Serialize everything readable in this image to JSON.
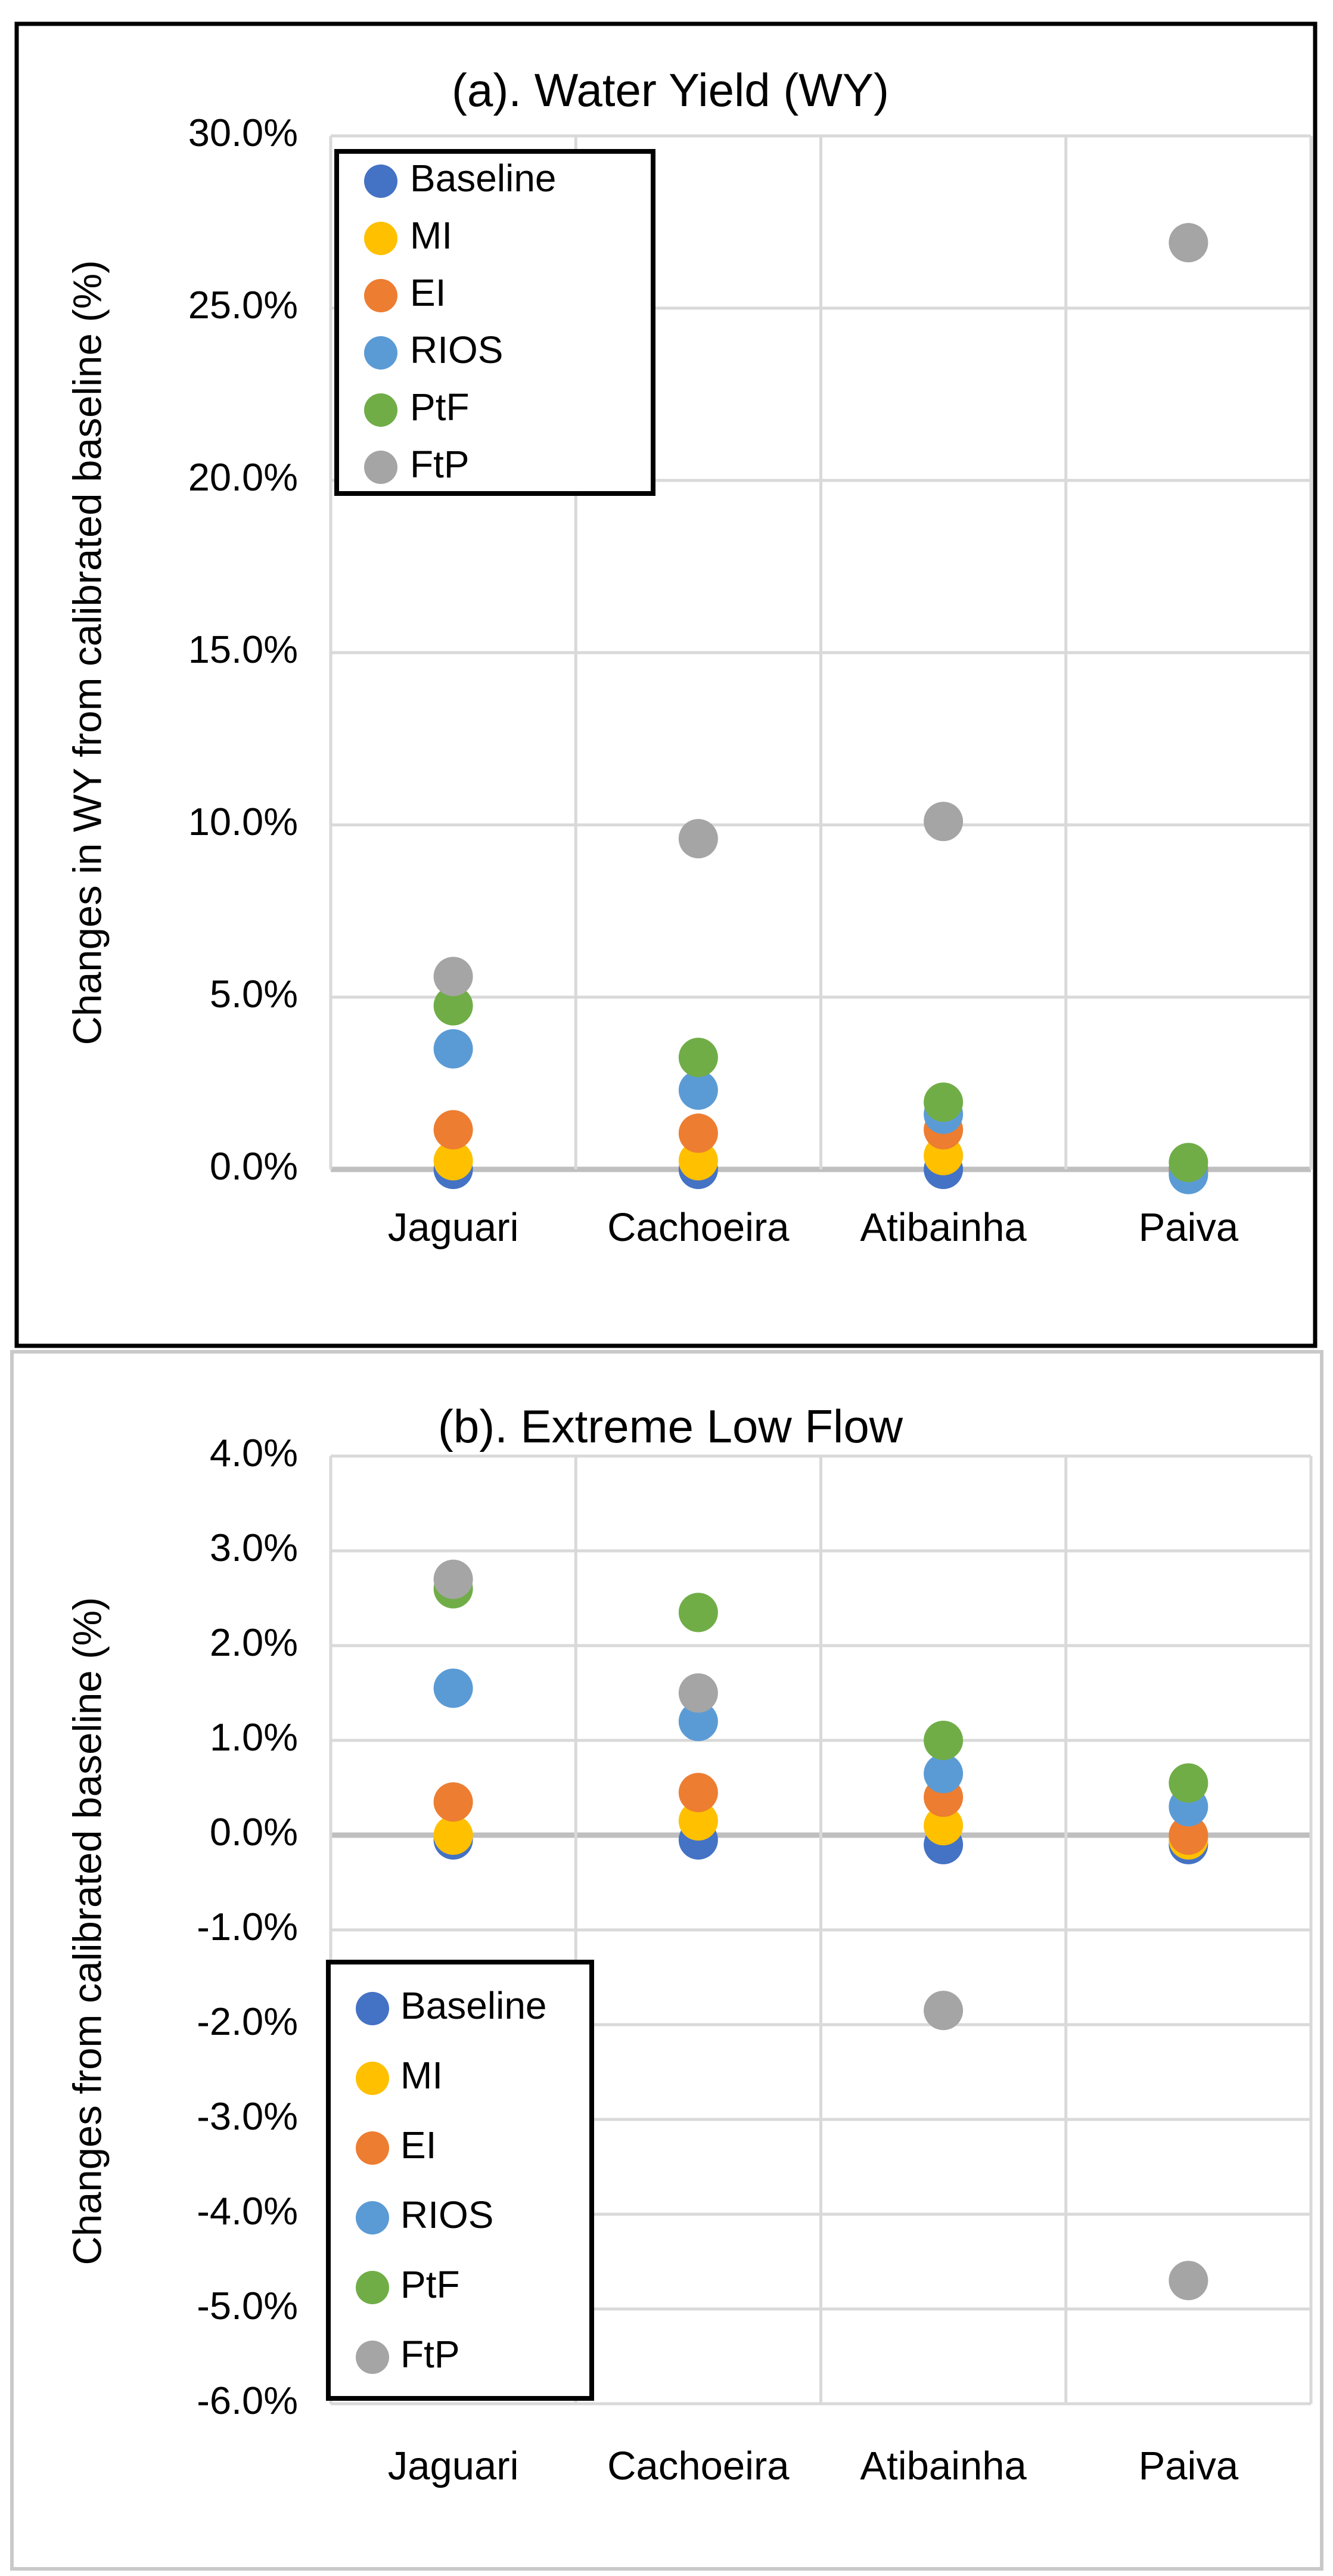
{
  "figure": {
    "background": "#FFFFFF",
    "panel_a_border_color": "#000000",
    "panel_b_border_color": "#C9C9C9",
    "gridline_color": "#D9D9D9",
    "zero_line_color": "#BFBFBF",
    "legend_border_color": "#000000"
  },
  "chart_data": [
    {
      "panel": "a",
      "type": "scatter",
      "title": "(a). Water Yield (WY)",
      "xlabel": "",
      "ylabel": "Changes in WY from calibrated baseline (%)",
      "categories": [
        "Jaguari",
        "Cachoeira",
        "Atibainha",
        "Paiva"
      ],
      "ylim": [
        0,
        30
      ],
      "ytick_step": 5,
      "ytick_labels": [
        "30.0%",
        "25.0%",
        "20.0%",
        "15.0%",
        "10.0%",
        "5.0%",
        "0.0%"
      ],
      "grid": true,
      "legend_position": "top-left-inside",
      "legend_entries": [
        "Baseline",
        "MI",
        "EI",
        "RIOS",
        "PtF",
        "FtP"
      ],
      "series": [
        {
          "name": "Baseline",
          "color": "#4472C4",
          "values": [
            0.0,
            0.0,
            0.0,
            0.0
          ]
        },
        {
          "name": "MI",
          "color": "#FFC000",
          "values": [
            0.25,
            0.25,
            0.4,
            -0.1
          ]
        },
        {
          "name": "EI",
          "color": "#ED7D31",
          "values": [
            1.15,
            1.05,
            1.15,
            -0.05
          ]
        },
        {
          "name": "RIOS",
          "color": "#5B9BD5",
          "values": [
            3.5,
            2.3,
            1.6,
            -0.15
          ]
        },
        {
          "name": "PtF",
          "color": "#70AD47",
          "values": [
            4.75,
            3.25,
            1.95,
            0.2
          ]
        },
        {
          "name": "FtP",
          "color": "#A5A5A5",
          "values": [
            5.6,
            9.6,
            10.1,
            26.9
          ]
        }
      ]
    },
    {
      "panel": "b",
      "type": "scatter",
      "title": "(b). Extreme Low Flow",
      "xlabel": "",
      "ylabel": "Changes from calibrated baseline (%)",
      "categories": [
        "Jaguari",
        "Cachoeira",
        "Atibainha",
        "Paiva"
      ],
      "ylim": [
        -6,
        4
      ],
      "ytick_step": 1,
      "ytick_labels": [
        "4.0%",
        "3.0%",
        "2.0%",
        "1.0%",
        "0.0%",
        "-1.0%",
        "-2.0%",
        "-3.0%",
        "-4.0%",
        "-5.0%",
        "-6.0%"
      ],
      "grid": true,
      "legend_position": "bottom-left-inside",
      "legend_entries": [
        "Baseline",
        "MI",
        "EI",
        "RIOS",
        "PtF",
        "FtP"
      ],
      "series": [
        {
          "name": "Baseline",
          "color": "#4472C4",
          "values": [
            -0.05,
            -0.05,
            -0.1,
            -0.1
          ]
        },
        {
          "name": "MI",
          "color": "#FFC000",
          "values": [
            0.0,
            0.15,
            0.1,
            -0.05
          ]
        },
        {
          "name": "EI",
          "color": "#ED7D31",
          "values": [
            0.35,
            0.45,
            0.4,
            0.0
          ]
        },
        {
          "name": "RIOS",
          "color": "#5B9BD5",
          "values": [
            1.55,
            1.2,
            0.65,
            0.3
          ]
        },
        {
          "name": "PtF",
          "color": "#70AD47",
          "values": [
            2.6,
            2.35,
            1.0,
            0.55
          ]
        },
        {
          "name": "FtP",
          "color": "#A5A5A5",
          "values": [
            2.7,
            1.5,
            -1.85,
            -4.7
          ]
        }
      ]
    }
  ]
}
